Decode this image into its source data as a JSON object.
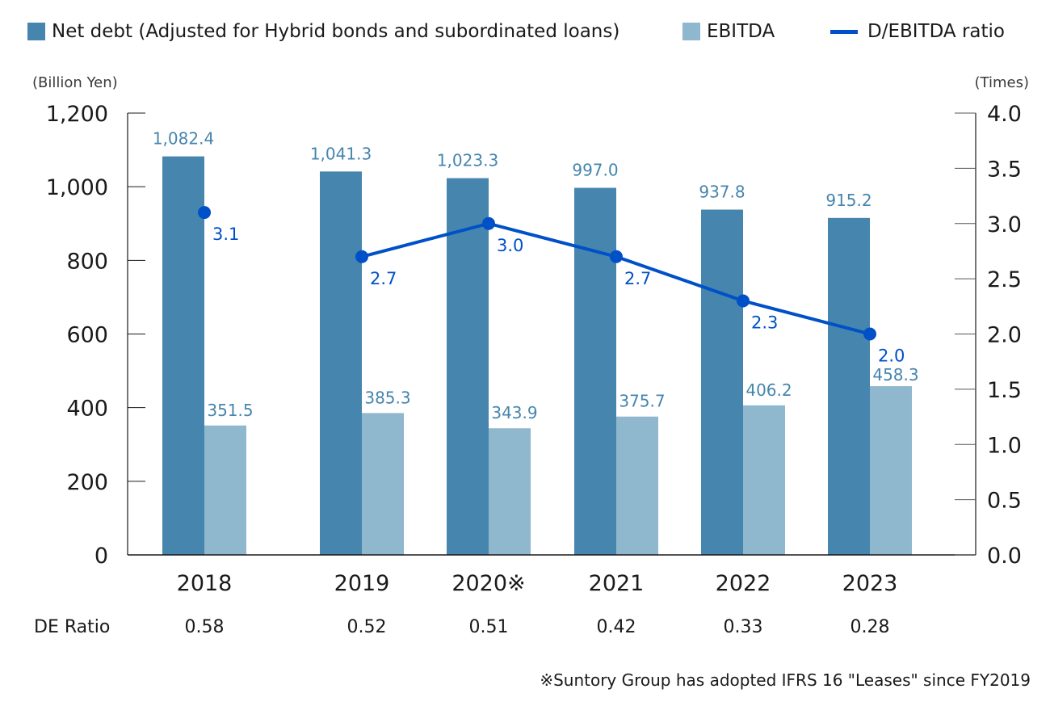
{
  "legend": {
    "net_debt": "Net debt (Adjusted for Hybrid bonds and subordinated loans)",
    "ebitda": "EBITDA",
    "ratio": "D/EBITDA ratio"
  },
  "units": {
    "left": "(Billion Yen)",
    "right": "(Times)"
  },
  "colors": {
    "net_debt": "#4685ae",
    "ebitda": "#8fb7cd",
    "ratio": "#0050c8",
    "axis": "#1a1a1a"
  },
  "de_ratio": {
    "label": "DE Ratio",
    "values": [
      "0.58",
      "0.52",
      "0.51",
      "0.42",
      "0.33",
      "0.28"
    ]
  },
  "footnote": "※Suntory Group has adopted IFRS 16 \"Leases\" since FY2019",
  "chart_data": {
    "type": "bar",
    "title": "",
    "xlabel": "",
    "ylabel": "(Billion Yen)",
    "y2label": "(Times)",
    "categories": [
      "2018",
      "2019",
      "2020※",
      "2021",
      "2022",
      "2023"
    ],
    "series": [
      {
        "name": "Net debt (Adjusted for Hybrid bonds and subordinated loans)",
        "type": "bar",
        "axis": "left",
        "values": [
          1082.4,
          1041.3,
          1023.3,
          997.0,
          937.8,
          915.2
        ],
        "labels": [
          "1,082.4",
          "1,041.3",
          "1,023.3",
          "997.0",
          "937.8",
          "915.2"
        ]
      },
      {
        "name": "EBITDA",
        "type": "bar",
        "axis": "left",
        "values": [
          351.5,
          385.3,
          343.9,
          375.7,
          406.2,
          458.3
        ],
        "labels": [
          "351.5",
          "385.3",
          "343.9",
          "375.7",
          "406.2",
          "458.3"
        ]
      },
      {
        "name": "D/EBITDA ratio",
        "type": "line",
        "axis": "right",
        "values": [
          3.1,
          2.7,
          3.0,
          2.7,
          2.3,
          2.0
        ],
        "labels": [
          "3.1",
          "2.7",
          "3.0",
          "2.7",
          "2.3",
          "2.0"
        ],
        "connected_from_index": 1
      }
    ],
    "ylim": [
      0,
      1200
    ],
    "y_ticks": [
      "0",
      "200",
      "400",
      "600",
      "800",
      "1,000",
      "1,200"
    ],
    "y_tick_values": [
      0,
      200,
      400,
      600,
      800,
      1000,
      1200
    ],
    "y2lim": [
      0,
      4.0
    ],
    "y2_ticks": [
      "0.0",
      "0.5",
      "1.0",
      "1.5",
      "2.0",
      "2.5",
      "3.0",
      "3.5",
      "4.0"
    ],
    "y2_tick_values": [
      0,
      0.5,
      1.0,
      1.5,
      2.0,
      2.5,
      3.0,
      3.5,
      4.0
    ],
    "grid": false,
    "legend_position": "top"
  }
}
